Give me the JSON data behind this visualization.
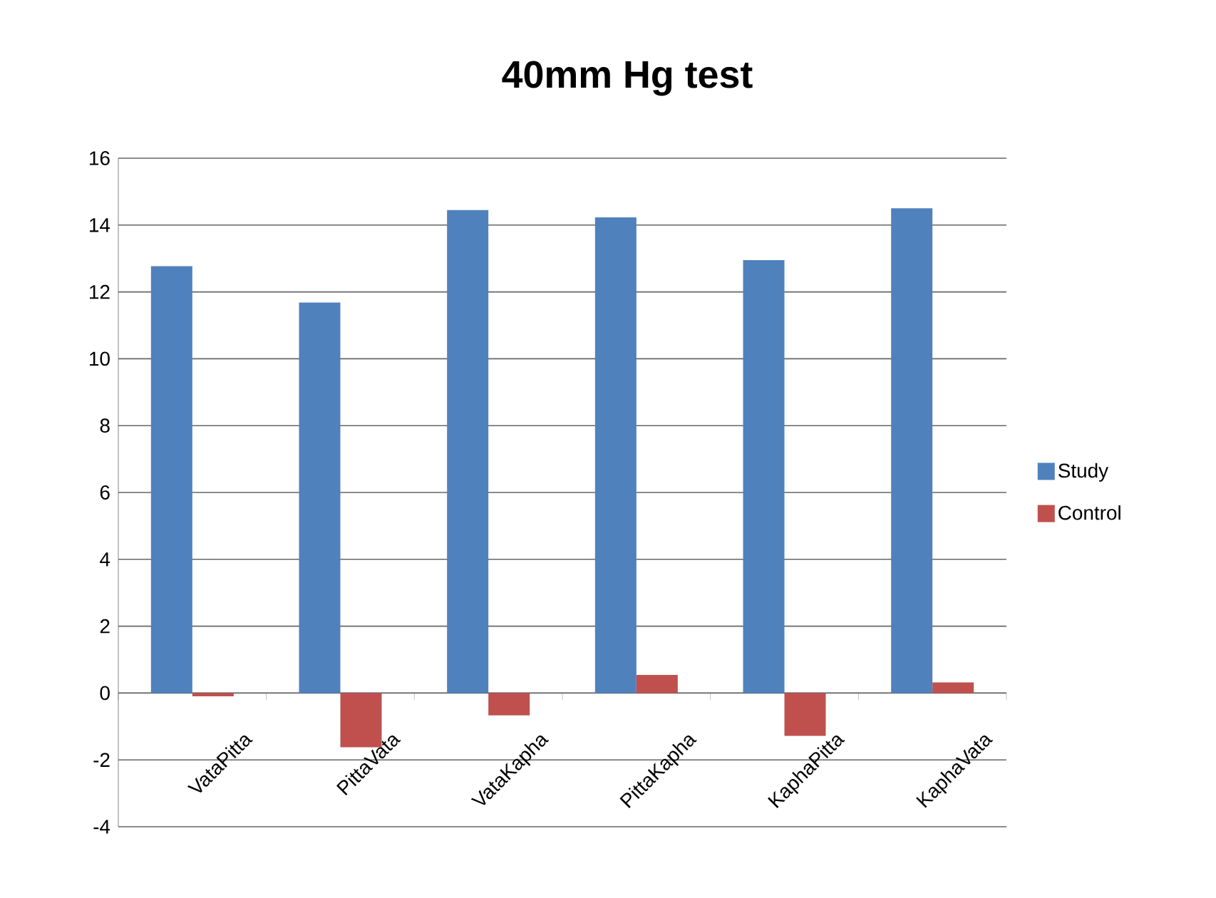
{
  "chart_data": {
    "type": "bar",
    "title": "40mm Hg test",
    "categories": [
      "VataPitta",
      "PittaVata",
      "VataKapha",
      "PittaKapha",
      "KaphaPitta",
      "KaphaVata"
    ],
    "series": [
      {
        "name": "Study",
        "color": "#4f81bd",
        "values": [
          12.77,
          11.68,
          14.45,
          14.23,
          12.95,
          14.5
        ]
      },
      {
        "name": "Control",
        "color": "#c0504d",
        "values": [
          -0.1,
          -1.62,
          -0.67,
          0.54,
          -1.28,
          0.32
        ]
      }
    ],
    "ylim": [
      -4,
      16
    ],
    "yticks": [
      -4,
      -2,
      0,
      2,
      4,
      6,
      8,
      10,
      12,
      14,
      16
    ],
    "grid": "y",
    "legend": "right"
  }
}
